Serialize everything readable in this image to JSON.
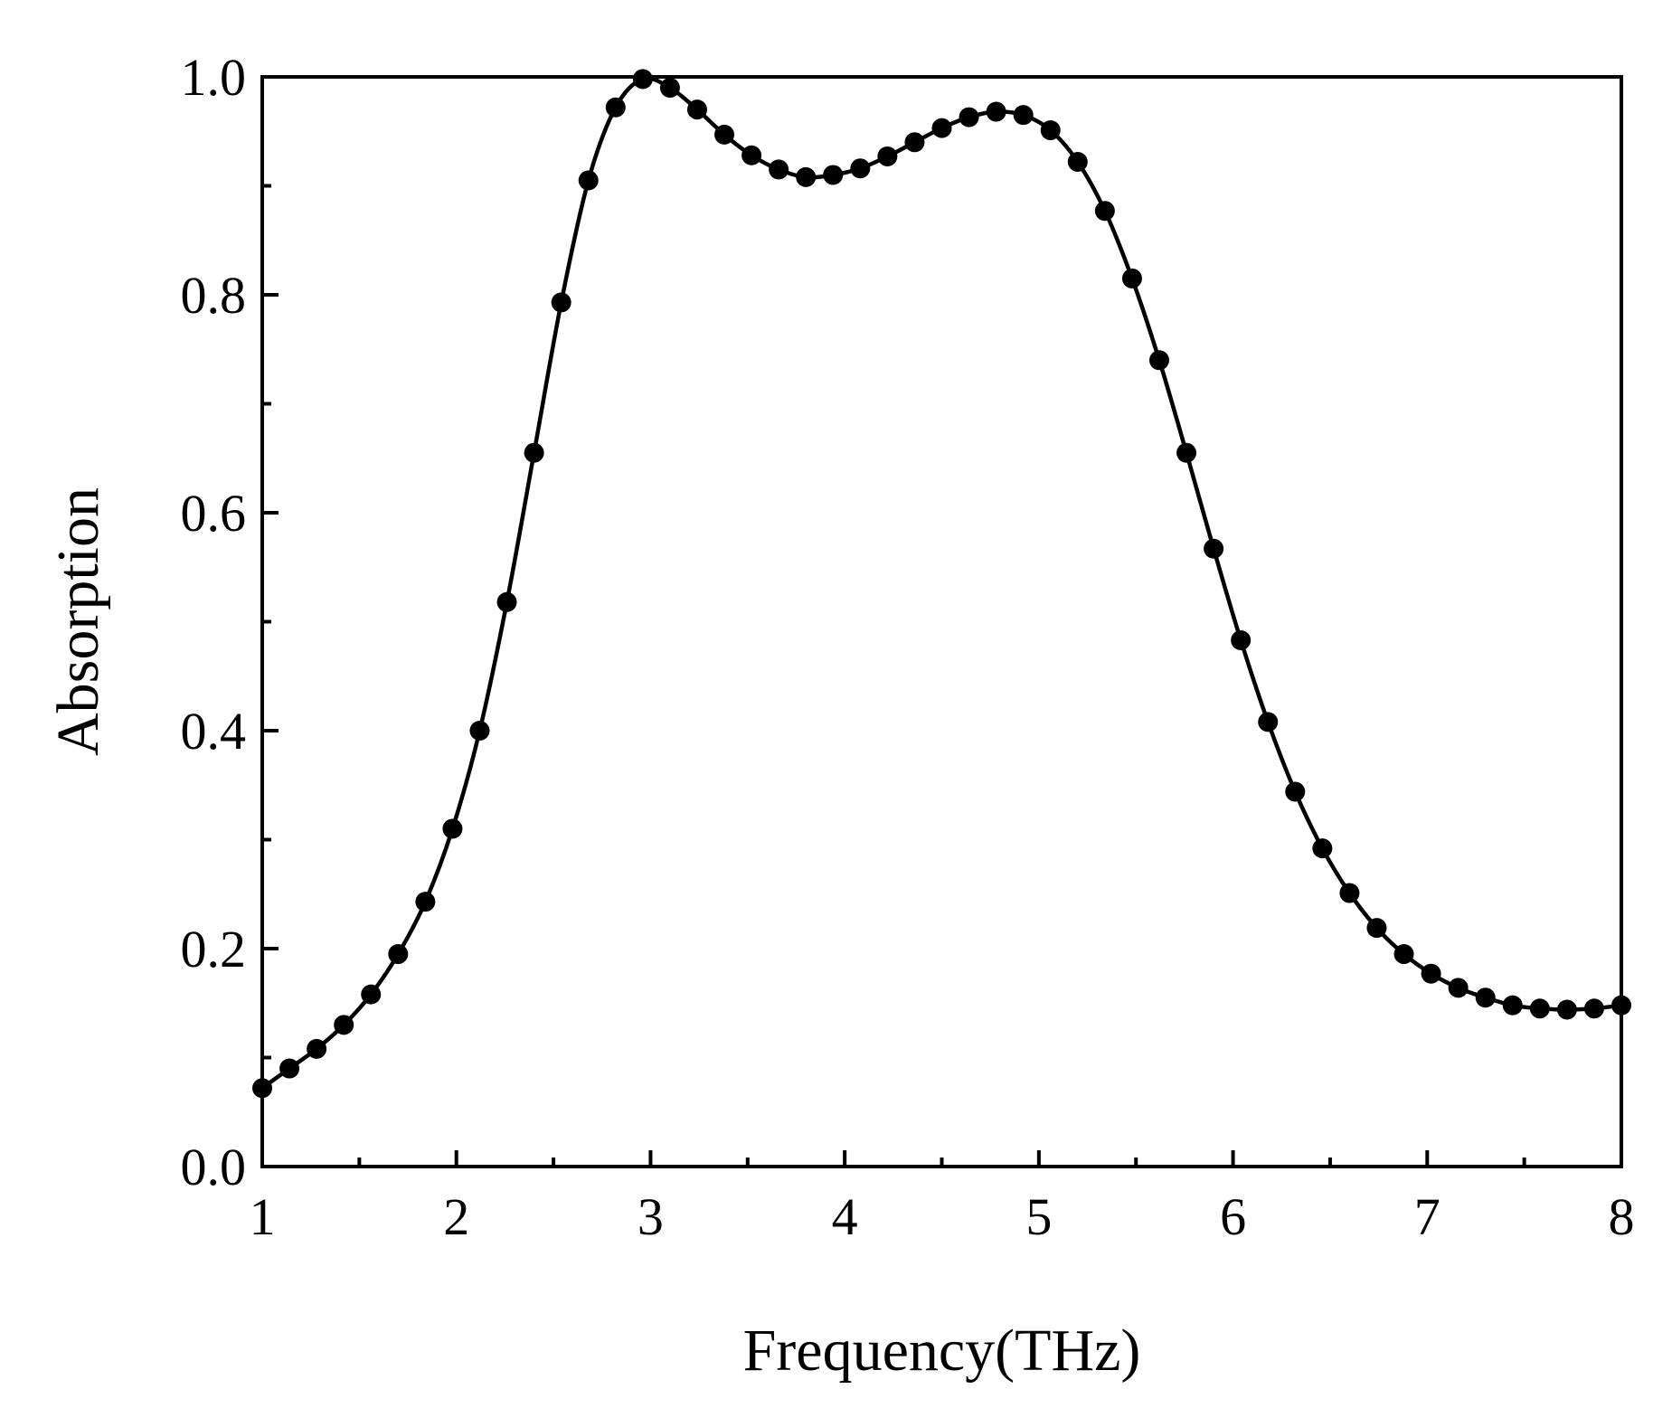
{
  "chart_data": {
    "type": "line",
    "xlabel": "Frequency(THz)",
    "ylabel": "Absorption",
    "xlim": [
      1,
      8
    ],
    "ylim": [
      0.0,
      1.0
    ],
    "x_ticks": [
      "1",
      "2",
      "3",
      "4",
      "5",
      "6",
      "7",
      "8"
    ],
    "y_ticks": [
      "0.0",
      "0.2",
      "0.4",
      "0.6",
      "0.8",
      "1.0"
    ],
    "grid": false,
    "legend": "none",
    "marker": "filled-circle",
    "line_color": "#000000",
    "series": [
      {
        "x": [
          1.0,
          1.14,
          1.28,
          1.42,
          1.56,
          1.7,
          1.84,
          1.98,
          2.12,
          2.26,
          2.4,
          2.54,
          2.68,
          2.82,
          2.96,
          3.1,
          3.24,
          3.38,
          3.52,
          3.66,
          3.8,
          3.94,
          4.08,
          4.22,
          4.36,
          4.5,
          4.64,
          4.78,
          4.92,
          5.06,
          5.2,
          5.34,
          5.48,
          5.62,
          5.76,
          5.9,
          6.04,
          6.18,
          6.32,
          6.46,
          6.6,
          6.74,
          6.88,
          7.02,
          7.16,
          7.3,
          7.44,
          7.58,
          7.72,
          7.86,
          8.0
        ],
        "y": [
          0.072,
          0.09,
          0.108,
          0.13,
          0.158,
          0.195,
          0.243,
          0.31,
          0.4,
          0.518,
          0.655,
          0.793,
          0.905,
          0.972,
          0.998,
          0.99,
          0.97,
          0.947,
          0.928,
          0.915,
          0.908,
          0.91,
          0.916,
          0.927,
          0.94,
          0.953,
          0.963,
          0.968,
          0.965,
          0.951,
          0.922,
          0.877,
          0.815,
          0.74,
          0.655,
          0.567,
          0.483,
          0.408,
          0.344,
          0.292,
          0.251,
          0.219,
          0.195,
          0.177,
          0.164,
          0.155,
          0.148,
          0.145,
          0.144,
          0.145,
          0.148
        ]
      }
    ]
  }
}
